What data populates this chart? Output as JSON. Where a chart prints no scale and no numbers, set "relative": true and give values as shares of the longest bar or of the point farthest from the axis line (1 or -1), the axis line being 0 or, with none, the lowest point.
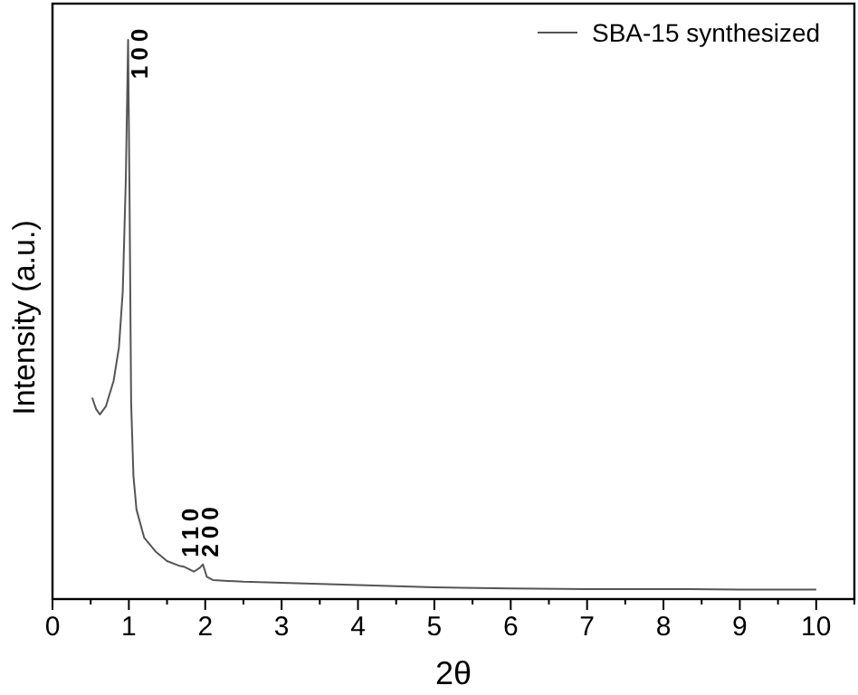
{
  "chart_data": {
    "type": "line",
    "relative": true,
    "xlabel": "2θ",
    "ylabel": "Intensity (a.u.)",
    "xlim": [
      0,
      10.5
    ],
    "xticks": [
      0,
      {
        "value": 0.5,
        "label": null
      },
      1,
      {
        "value": 1.5,
        "label": null
      },
      2,
      {
        "value": 2.5,
        "label": null
      },
      3,
      {
        "value": 3.5,
        "label": null
      },
      4,
      {
        "value": 4.5,
        "label": null
      },
      5,
      {
        "value": 5.5,
        "label": null
      },
      6,
      {
        "value": 6.5,
        "label": null
      },
      7,
      {
        "value": 7.5,
        "label": null
      },
      8,
      {
        "value": 8.5,
        "label": null
      },
      9,
      {
        "value": 9.5,
        "label": null
      },
      10,
      {
        "value": 10.5,
        "label": null
      }
    ],
    "legend": "top right",
    "line_style": "solid",
    "marker": "none",
    "series": [
      {
        "name": "SBA-15 synthesized",
        "color": "#555555",
        "x": [
          0.52,
          0.57,
          0.62,
          0.7,
          0.8,
          0.87,
          0.92,
          0.96,
          0.99,
          1.01,
          1.03,
          1.06,
          1.1,
          1.2,
          1.35,
          1.5,
          1.65,
          1.72,
          1.78,
          1.85,
          1.93,
          1.97,
          2.02,
          2.1,
          2.5,
          3,
          4,
          5,
          6,
          7,
          8,
          9,
          10
        ],
        "values": [
          0.36,
          0.34,
          0.33,
          0.345,
          0.39,
          0.45,
          0.55,
          0.75,
          1.0,
          0.7,
          0.35,
          0.22,
          0.16,
          0.11,
          0.085,
          0.068,
          0.06,
          0.058,
          0.054,
          0.049,
          0.056,
          0.062,
          0.04,
          0.034,
          0.031,
          0.029,
          0.025,
          0.021,
          0.019,
          0.018,
          0.018,
          0.017,
          0.017
        ]
      }
    ],
    "annotations": [
      {
        "text": "100",
        "x": 1.05,
        "y": 0.93
      },
      {
        "text": "110",
        "x": 1.72,
        "y": 0.075
      },
      {
        "text": "200",
        "x": 1.98,
        "y": 0.075
      }
    ]
  }
}
